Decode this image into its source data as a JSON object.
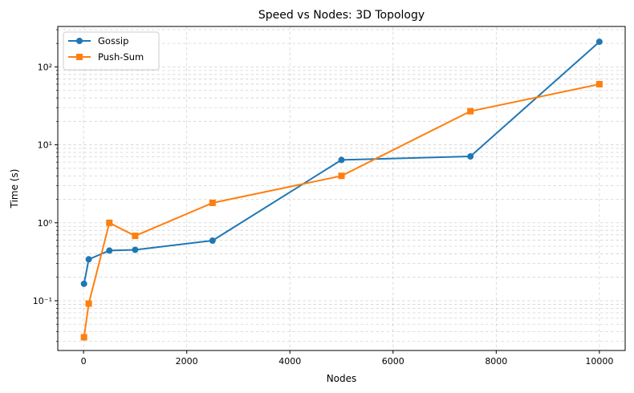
{
  "chart_data": {
    "type": "line",
    "title": "Speed vs Nodes: 3D Topology",
    "xlabel": "Nodes",
    "ylabel": "Time (s)",
    "xlim": [
      -500,
      10500
    ],
    "ylim": [
      0.023,
      330
    ],
    "yscale": "log",
    "grid": true,
    "legend_position": "top-left",
    "x_ticks": [
      0,
      2000,
      4000,
      6000,
      8000,
      10000
    ],
    "x_tick_labels": [
      "0",
      "2000",
      "4000",
      "6000",
      "8000",
      "10000"
    ],
    "y_ticks": [
      0.1,
      1,
      10,
      100
    ],
    "y_tick_labels": [
      "10⁻¹",
      "10⁰",
      "10¹",
      "10²"
    ],
    "series": [
      {
        "name": "Gossip",
        "color": "#1f77b4",
        "marker": "circle",
        "x": [
          8,
          100,
          500,
          1000,
          2500,
          5000,
          7500,
          10000
        ],
        "y": [
          0.165,
          0.34,
          0.44,
          0.45,
          0.59,
          6.4,
          7.1,
          210
        ]
      },
      {
        "name": "Push-Sum",
        "color": "#ff7f0e",
        "marker": "square",
        "x": [
          8,
          100,
          500,
          1000,
          2500,
          5000,
          7500,
          10000
        ],
        "y": [
          0.034,
          0.092,
          1.0,
          0.68,
          1.8,
          4.0,
          27,
          60
        ]
      }
    ]
  }
}
